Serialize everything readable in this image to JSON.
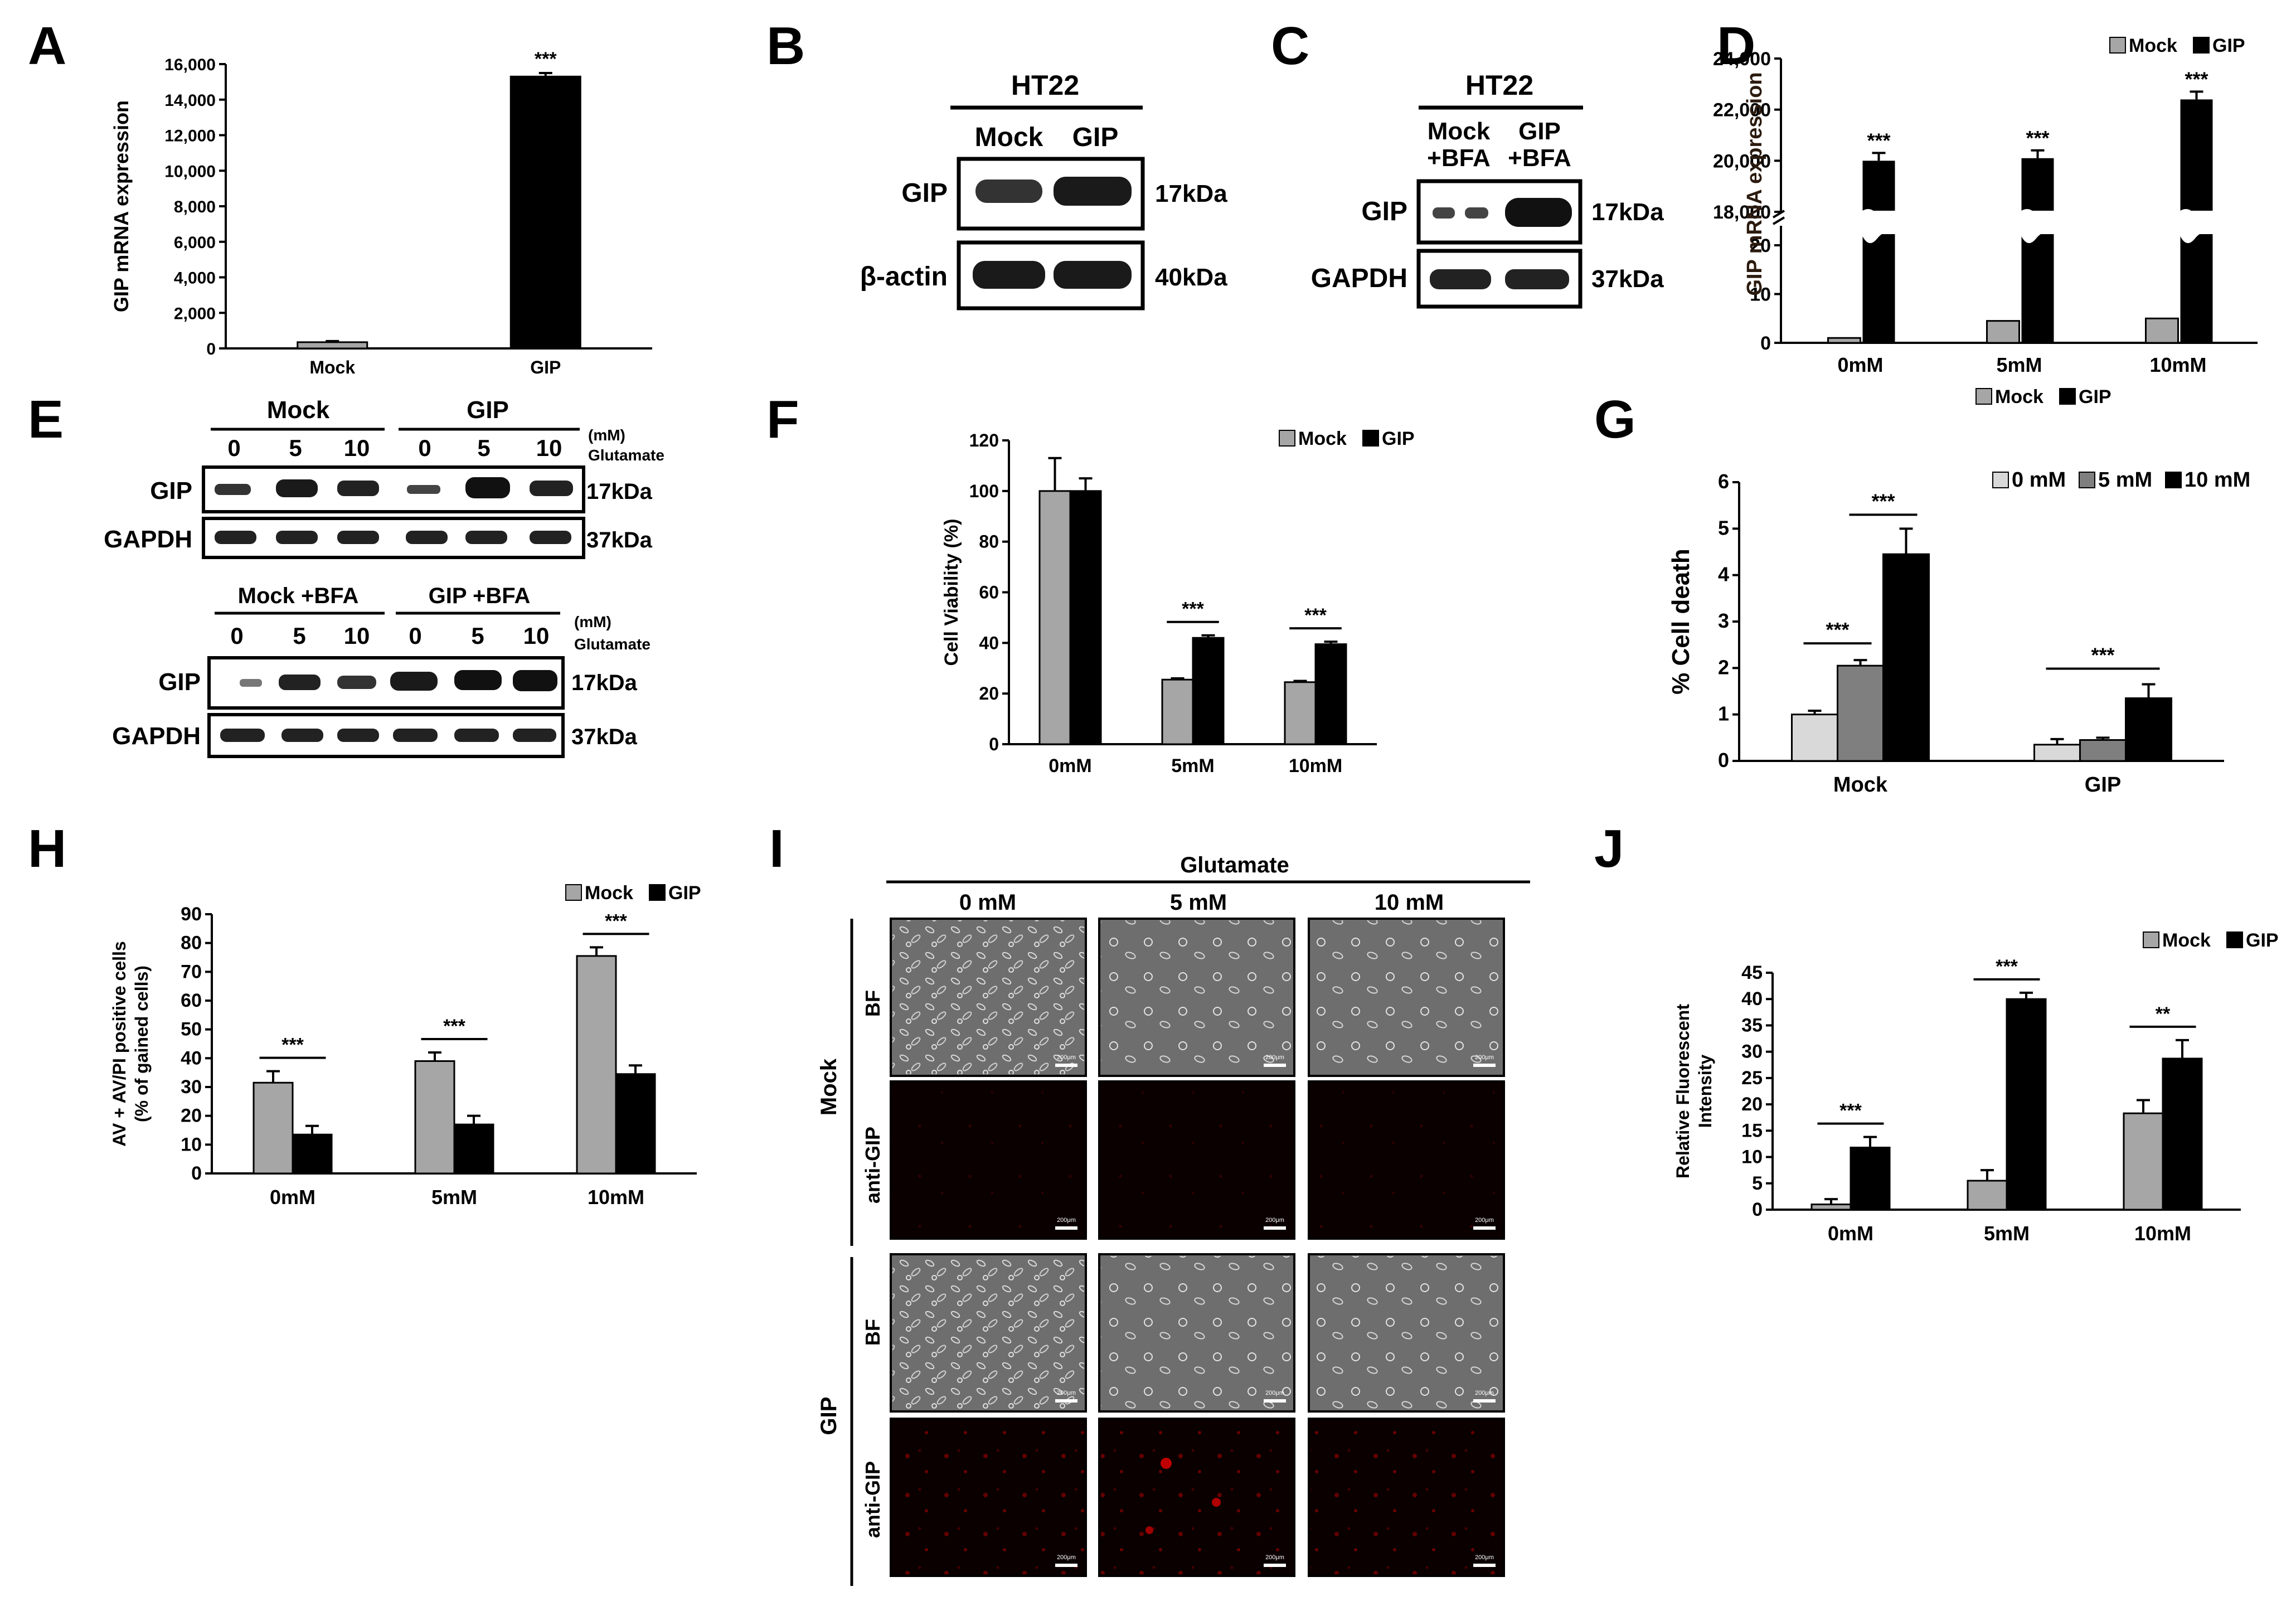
{
  "panel_labels": [
    "A",
    "B",
    "C",
    "D",
    "E",
    "F",
    "G",
    "H",
    "I",
    "J"
  ],
  "colors": {
    "mock": "#a6a6a6",
    "gip": "#000000",
    "g0": "#d9d9d9",
    "g5": "#7f7f7f",
    "g10": "#000000",
    "red": "#8b0000"
  },
  "blotB": {
    "cell": "HT22",
    "lanes": [
      "Mock",
      "GIP"
    ],
    "rows": [
      "GIP",
      "β-actin"
    ],
    "sizes": [
      "17kDa",
      "40kDa"
    ]
  },
  "blotC": {
    "cell": "HT22",
    "lanes": [
      "Mock\n+BFA",
      "GIP\n+BFA"
    ],
    "lane1": [
      "Mock",
      "+BFA"
    ],
    "lane2": [
      "GIP",
      "+BFA"
    ],
    "rows": [
      "GIP",
      "GAPDH"
    ],
    "sizes": [
      "17kDa",
      "37kDa"
    ]
  },
  "blotE": {
    "top_groups": [
      "Mock",
      "GIP"
    ],
    "bottom_groups": [
      "Mock +BFA",
      "GIP +BFA"
    ],
    "doses": [
      "0",
      "5",
      "10",
      "0",
      "5",
      "10"
    ],
    "unit": "(mM)",
    "unit2": "Glutamate",
    "rows": [
      "GIP",
      "GAPDH"
    ],
    "sizes": [
      "17kDa",
      "37kDa"
    ]
  },
  "micro": {
    "header": "Glutamate",
    "cols": [
      "0 mM",
      "5 mM",
      "10 mM"
    ],
    "groups": [
      "Mock",
      "GIP"
    ],
    "rows": [
      "BF",
      "anti-GIP"
    ],
    "scale": "200μm"
  },
  "chart_data": [
    {
      "panel": "A",
      "type": "bar",
      "categories": [
        "Mock",
        "GIP"
      ],
      "values": [
        350,
        15300
      ],
      "errors": [
        60,
        200
      ],
      "ylabel": "GIP mRNA expression",
      "ylim": [
        0,
        16000
      ],
      "yticks": [
        "0",
        "2,000",
        "4,000",
        "6,000",
        "8,000",
        "10,000",
        "12,000",
        "14,000",
        "16,000"
      ],
      "sig": [
        "",
        "***"
      ]
    },
    {
      "panel": "D",
      "type": "bar",
      "categories": [
        "0mM",
        "5mM",
        "10mM"
      ],
      "series": [
        {
          "name": "Mock",
          "values": [
            1,
            4.5,
            5
          ]
        },
        {
          "name": "GIP",
          "values": [
            20000,
            20100,
            22400
          ]
        }
      ],
      "ylabel": "GIP mRNA expression",
      "yticks_upper": [
        "18,000",
        "20,000",
        "22,000",
        "24,000"
      ],
      "yticks_lower": [
        "0",
        "10",
        "20"
      ],
      "sig": [
        "***",
        "***",
        "***"
      ],
      "legend": [
        "Mock",
        "GIP"
      ]
    },
    {
      "panel": "F",
      "type": "bar",
      "categories": [
        "0mM",
        "5mM",
        "10mM"
      ],
      "series": [
        {
          "name": "Mock",
          "values": [
            100,
            25.5,
            24.5
          ],
          "errors": [
            13,
            0.5,
            0.5
          ]
        },
        {
          "name": "GIP",
          "values": [
            100,
            42,
            39.5
          ],
          "errors": [
            5,
            1,
            1
          ]
        }
      ],
      "ylabel": "Cell Viability (%)",
      "ylim": [
        0,
        120
      ],
      "yticks": [
        "0",
        "20",
        "40",
        "60",
        "80",
        "100",
        "120"
      ],
      "sig": [
        "",
        "***",
        "***"
      ],
      "legend": [
        "Mock",
        "GIP"
      ]
    },
    {
      "panel": "G",
      "type": "bar",
      "categories": [
        "Mock",
        "GIP"
      ],
      "series": [
        {
          "name": "0 mM",
          "values": [
            1.0,
            0.35
          ],
          "errors": [
            0.08,
            0.12
          ]
        },
        {
          "name": "5 mM",
          "values": [
            2.05,
            0.45
          ],
          "errors": [
            0.12,
            0.05
          ]
        },
        {
          "name": "10 mM",
          "values": [
            4.45,
            1.35
          ],
          "errors": [
            0.55,
            0.3
          ]
        }
      ],
      "ylabel": "% Cell death",
      "ylim": [
        0,
        6
      ],
      "yticks": [
        "0",
        "1",
        "2",
        "3",
        "4",
        "5",
        "6"
      ],
      "sig": [
        "***",
        "***",
        "***"
      ],
      "legend": [
        "0 mM",
        "5 mM",
        "10 mM"
      ]
    },
    {
      "panel": "H",
      "type": "bar",
      "categories": [
        "0mM",
        "5mM",
        "10mM"
      ],
      "series": [
        {
          "name": "Mock",
          "values": [
            31.5,
            39,
            75.5
          ],
          "errors": [
            4,
            3,
            3
          ]
        },
        {
          "name": "GIP",
          "values": [
            13.5,
            17,
            34.5
          ],
          "errors": [
            3,
            3,
            3
          ]
        }
      ],
      "ylabel": "AV + AV/PI positive cells",
      "ylabel2": "(% of gained cells)",
      "ylim": [
        0,
        90
      ],
      "yticks": [
        "0",
        "10",
        "20",
        "30",
        "40",
        "50",
        "60",
        "70",
        "80",
        "90"
      ],
      "sig": [
        "***",
        "***",
        "***"
      ],
      "legend": [
        "Mock",
        "GIP"
      ]
    },
    {
      "panel": "J",
      "type": "bar",
      "categories": [
        "0mM",
        "5mM",
        "10mM"
      ],
      "series": [
        {
          "name": "Mock",
          "values": [
            1,
            5.5,
            18.3
          ],
          "errors": [
            1,
            2,
            2.5
          ]
        },
        {
          "name": "GIP",
          "values": [
            11.8,
            40,
            28.7
          ],
          "errors": [
            2,
            1.2,
            3.5
          ]
        }
      ],
      "ylabel": "Relative Fluorescent",
      "ylabel2": "Intensity",
      "ylim": [
        0,
        45
      ],
      "yticks": [
        "0",
        "5",
        "10",
        "15",
        "20",
        "25",
        "30",
        "35",
        "40",
        "45"
      ],
      "sig": [
        "***",
        "***",
        "**"
      ],
      "legend": [
        "Mock",
        "GIP"
      ]
    }
  ]
}
